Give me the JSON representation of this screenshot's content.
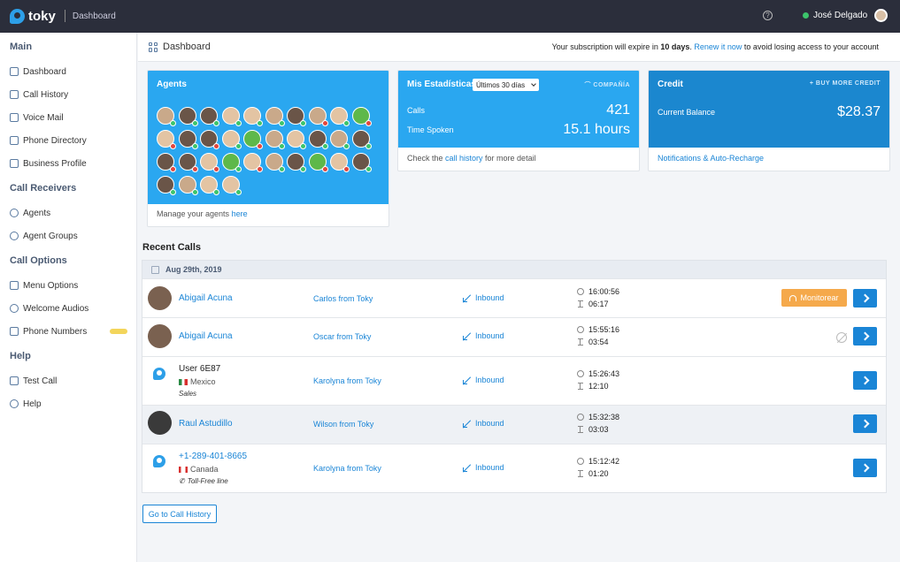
{
  "app": {
    "name": "toky",
    "section": "Dashboard"
  },
  "topbar": {
    "user_name": "José Delgado",
    "help": "?"
  },
  "sidebar": {
    "sections": [
      {
        "title": "Main",
        "items": [
          {
            "label": "Dashboard",
            "icon": "dashboard-icon"
          },
          {
            "label": "Call History",
            "icon": "call-history-icon"
          },
          {
            "label": "Voice Mail",
            "icon": "voicemail-icon"
          },
          {
            "label": "Phone Directory",
            "icon": "directory-icon"
          },
          {
            "label": "Business Profile",
            "icon": "business-icon"
          }
        ]
      },
      {
        "title": "Call Receivers",
        "items": [
          {
            "label": "Agents",
            "icon": "agent-icon"
          },
          {
            "label": "Agent Groups",
            "icon": "agent-groups-icon"
          }
        ]
      },
      {
        "title": "Call Options",
        "items": [
          {
            "label": "Menu Options",
            "icon": "menu-options-icon"
          },
          {
            "label": "Welcome Audios",
            "icon": "microphone-icon"
          },
          {
            "label": "Phone Numbers",
            "icon": "phone-icon"
          }
        ]
      },
      {
        "title": "Help",
        "items": [
          {
            "label": "Test Call",
            "icon": "phone-icon"
          },
          {
            "label": "Help",
            "icon": "help-icon"
          }
        ]
      }
    ]
  },
  "header": {
    "title": "Dashboard",
    "notice_prefix": "Your subscription will expire in ",
    "notice_days": "10 days",
    "notice_mid": ". ",
    "notice_link": "Renew it now",
    "notice_suffix": " to avoid losing access to your account"
  },
  "agents_card": {
    "title": "Agents",
    "foot_text": "Manage your agents ",
    "foot_link": "here",
    "agents": [
      {
        "tone": "mid",
        "status": "green"
      },
      {
        "tone": "dk",
        "status": "green"
      },
      {
        "tone": "dk",
        "status": "green"
      },
      {
        "tone": "lt",
        "status": "green"
      },
      {
        "tone": "lt",
        "status": "green"
      },
      {
        "tone": "mid",
        "status": "green"
      },
      {
        "tone": "dk",
        "status": "green"
      },
      {
        "tone": "mid",
        "status": "red"
      },
      {
        "tone": "lt",
        "status": "green"
      },
      {
        "tone": "leaf",
        "status": "red"
      },
      {
        "tone": "lt",
        "status": "red"
      },
      {
        "tone": "dk",
        "status": "green"
      },
      {
        "tone": "dk",
        "status": "red"
      },
      {
        "tone": "lt",
        "status": "green"
      },
      {
        "tone": "leaf",
        "status": "red"
      },
      {
        "tone": "mid",
        "status": "green"
      },
      {
        "tone": "lt",
        "status": "green"
      },
      {
        "tone": "dk",
        "status": "green"
      },
      {
        "tone": "mid",
        "status": "green"
      },
      {
        "tone": "dk",
        "status": "green"
      },
      {
        "tone": "dk",
        "status": "red"
      },
      {
        "tone": "dk",
        "status": "red"
      },
      {
        "tone": "lt",
        "status": "red"
      },
      {
        "tone": "leaf",
        "status": "green"
      },
      {
        "tone": "lt",
        "status": "red"
      },
      {
        "tone": "mid",
        "status": "green"
      },
      {
        "tone": "dk",
        "status": "green"
      },
      {
        "tone": "leaf",
        "status": "red"
      },
      {
        "tone": "lt",
        "status": "red"
      },
      {
        "tone": "dk",
        "status": "green"
      },
      {
        "tone": "dk",
        "status": "green"
      },
      {
        "tone": "mid",
        "status": "green"
      },
      {
        "tone": "lt",
        "status": "green"
      },
      {
        "tone": "lt",
        "status": "green"
      }
    ]
  },
  "stats_card": {
    "title": "Mis Estadísticas",
    "period": "Últimos 30 días",
    "action": "COMPAÑÍA",
    "rows": [
      {
        "label": "Calls",
        "value": "421"
      },
      {
        "label": "Time Spoken",
        "value": "15.1 hours"
      }
    ],
    "foot_prefix": "Check the ",
    "foot_link": "call history",
    "foot_suffix": " for more detail"
  },
  "credit_card": {
    "title": "Credit",
    "action": "+ BUY MORE CREDIT",
    "balance_label": "Current Balance",
    "balance_value": "$28.37",
    "foot_link": "Notifications & Auto-Recharge"
  },
  "recent": {
    "title": "Recent Calls",
    "date": "Aug 29th, 2019",
    "monitor_label": "Monitorear",
    "goto_label": "Go to Call History",
    "calls": [
      {
        "name": "Abigail Acuna",
        "agent": "Carlos from Toky",
        "direction": "Inbound",
        "time": "16:00:56",
        "duration": "06:17"
      },
      {
        "name": "Abigail Acuna",
        "agent": "Oscar from Toky",
        "direction": "Inbound",
        "time": "15:55:16",
        "duration": "03:54"
      },
      {
        "name": "User 6E87",
        "country": "Mexico",
        "tag": "Sales",
        "agent": "Karolyna from Toky",
        "direction": "Inbound",
        "time": "15:26:43",
        "duration": "12:10"
      },
      {
        "name": "Raul Astudillo",
        "agent": "Wilson from Toky",
        "direction": "Inbound",
        "time": "15:32:38",
        "duration": "03:03"
      },
      {
        "name": "+1-289-401-8665",
        "country": "Canada",
        "tag": "Toll-Free line",
        "agent": "Karolyna from Toky",
        "direction": "Inbound",
        "time": "15:12:42",
        "duration": "01:20"
      }
    ]
  }
}
